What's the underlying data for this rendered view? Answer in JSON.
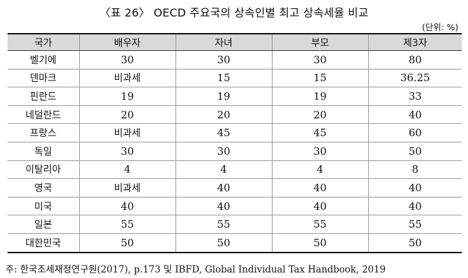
{
  "title": "〈표 26〉 OECD 주요국의 상속인별 최고 상속세율 비교",
  "unit": "(단위: %)",
  "table": {
    "headers": [
      "국가",
      "배우자",
      "자녀",
      "부모",
      "제3자"
    ],
    "rows": [
      [
        "벨기에",
        "30",
        "30",
        "30",
        "80"
      ],
      [
        "덴마크",
        "비과세",
        "15",
        "15",
        "36.25"
      ],
      [
        "핀란드",
        "19",
        "19",
        "19",
        "33"
      ],
      [
        "네덜란드",
        "20",
        "20",
        "20",
        "40"
      ],
      [
        "프랑스",
        "비과세",
        "45",
        "45",
        "60"
      ],
      [
        "독일",
        "30",
        "30",
        "30",
        "50"
      ],
      [
        "이탈리아",
        "4",
        "4",
        "4",
        "8"
      ],
      [
        "영국",
        "비과세",
        "40",
        "40",
        "40"
      ],
      [
        "미국",
        "40",
        "40",
        "40",
        "40"
      ],
      [
        "일본",
        "55",
        "55",
        "55",
        "55"
      ],
      [
        "대한민국",
        "50",
        "50",
        "50",
        "50"
      ]
    ]
  },
  "source": "주: 한국조세재정연구원(2017), p.173 및 IBFD, Global Individual Tax Handbook, 2019"
}
